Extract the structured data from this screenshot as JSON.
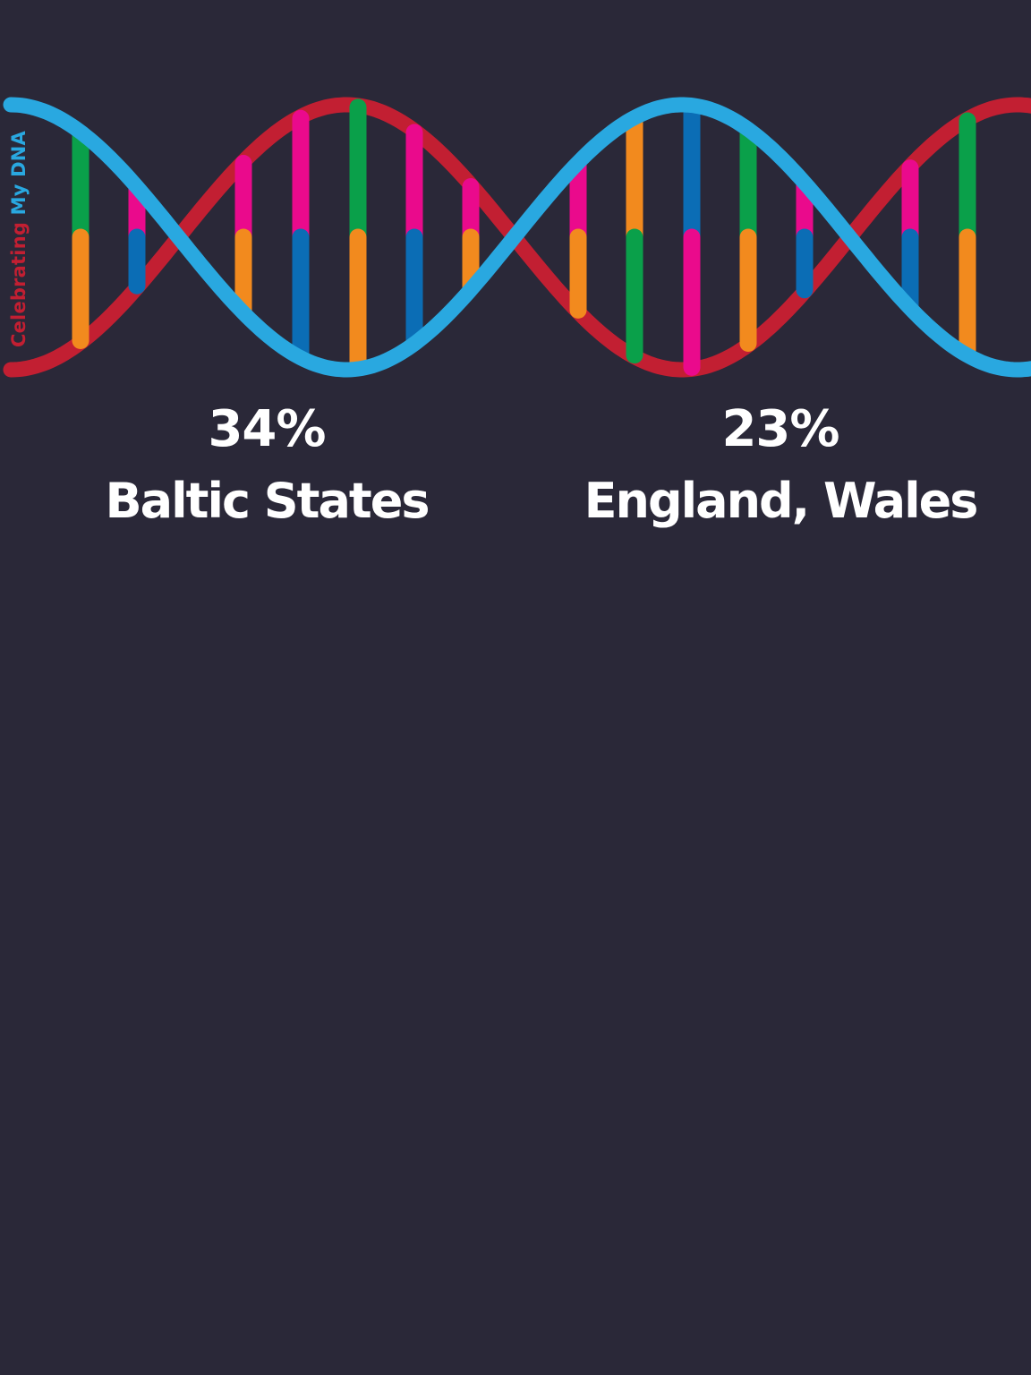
{
  "brand": {
    "word1": "Celebrating",
    "word2": "My DNA",
    "color1": "#c21f32",
    "color2": "#29a8e0"
  },
  "background": "#2a2838",
  "helix": {
    "strand_front": "#29a8e0",
    "strand_back": "#c21f32",
    "base_colors": {
      "green": "#0aa04a",
      "orange": "#f28a1e",
      "pink": "#ea0a8c",
      "blue": "#0b6db5"
    },
    "rungs": [
      [
        "green",
        "orange"
      ],
      [
        "pink",
        "blue"
      ],
      [
        "pink",
        "orange"
      ],
      [
        "pink",
        "blue"
      ],
      [
        "green",
        "orange"
      ],
      [
        "pink",
        "blue"
      ],
      [
        "pink",
        "orange"
      ],
      [
        "pink",
        "orange"
      ],
      [
        "orange",
        "green"
      ],
      [
        "blue",
        "pink"
      ],
      [
        "green",
        "orange"
      ],
      [
        "pink",
        "blue"
      ],
      [
        "pink",
        "blue"
      ],
      [
        "green",
        "orange"
      ]
    ]
  },
  "results": [
    {
      "percent": "34%",
      "region": "Baltic States"
    },
    {
      "percent": "23%",
      "region": "England, Wales"
    }
  ]
}
